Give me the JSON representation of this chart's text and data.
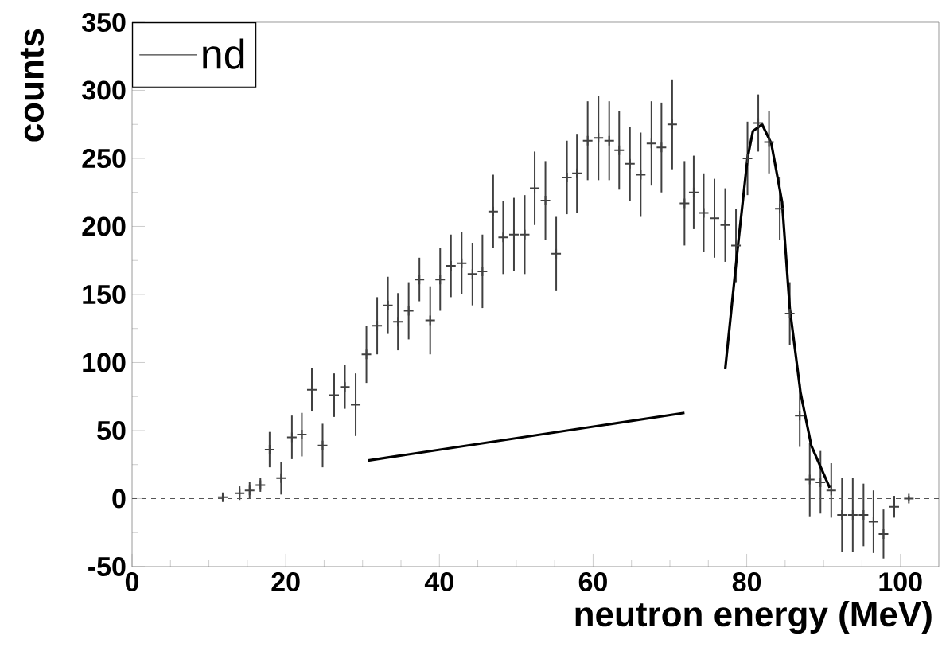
{
  "chart_data": {
    "type": "scatter",
    "xlabel": "neutron energy (MeV)",
    "ylabel": "counts",
    "xlim": [
      0,
      105
    ],
    "ylim": [
      -50,
      350
    ],
    "xticks": [
      0,
      20,
      40,
      60,
      80,
      100
    ],
    "yticks": [
      -50,
      0,
      50,
      100,
      150,
      200,
      250,
      300,
      350
    ],
    "grid": false,
    "legend": "top left",
    "ref_lines": [
      {
        "axis": "y",
        "value": 0,
        "line_style": "dashed",
        "color": "#555555"
      }
    ],
    "series": [
      {
        "name": "nd",
        "color": "#404040",
        "marker": "cross",
        "x": [
          11.8,
          14.0,
          15.3,
          16.7,
          17.9,
          19.4,
          20.8,
          22.1,
          23.4,
          24.8,
          26.3,
          27.7,
          29.1,
          30.5,
          31.9,
          33.3,
          34.6,
          36.0,
          37.4,
          38.8,
          40.1,
          41.5,
          42.9,
          44.3,
          45.6,
          47.0,
          48.3,
          49.7,
          51.1,
          52.4,
          53.8,
          55.2,
          56.6,
          57.9,
          59.3,
          60.7,
          62.1,
          63.4,
          64.8,
          66.2,
          67.6,
          68.9,
          70.3,
          71.9,
          73.1,
          74.4,
          75.8,
          77.2,
          78.6,
          80.1,
          81.5,
          82.9,
          84.3,
          85.6,
          86.9,
          88.2,
          89.6,
          91.0,
          92.4,
          93.8,
          95.2,
          96.5,
          97.8,
          99.2,
          101.1
        ],
        "values": [
          1,
          4,
          6,
          10,
          36,
          15,
          45,
          47,
          80,
          39,
          76,
          82,
          69,
          106,
          127,
          142,
          130,
          138,
          161,
          131,
          161,
          171,
          173,
          165,
          167,
          211,
          192,
          194,
          194,
          228,
          219,
          180,
          236,
          239,
          263,
          265,
          263,
          256,
          246,
          238,
          261,
          258,
          275,
          217,
          225,
          210,
          206,
          201,
          186,
          250,
          276,
          262,
          213,
          136,
          61,
          14,
          12,
          6,
          -12,
          -12,
          -12,
          -17,
          -26,
          -6,
          0
        ],
        "errors": [
          2,
          5,
          6,
          5,
          13,
          12,
          16,
          16,
          16,
          16,
          16,
          16,
          23,
          21,
          21,
          21,
          21,
          21,
          16,
          25,
          23,
          23,
          23,
          23,
          27,
          27,
          27,
          27,
          29,
          27,
          29,
          27,
          27,
          29,
          29,
          31,
          29,
          29,
          27,
          31,
          31,
          33,
          33,
          31,
          27,
          29,
          29,
          27,
          27,
          27,
          21,
          23,
          23,
          23,
          23,
          27,
          23,
          20,
          27,
          27,
          23,
          23,
          18,
          8,
          2
        ]
      },
      {
        "type": "line",
        "color": "#000000",
        "x": [
          30.7,
          71.9
        ],
        "values": [
          28,
          63
        ]
      },
      {
        "type": "line",
        "color": "#000000",
        "x": [
          77.2,
          78.8,
          80.1,
          80.8,
          82.0,
          83.2,
          84.6,
          85.6,
          87.0,
          88.4,
          90.8
        ],
        "values": [
          95,
          183,
          250,
          270,
          275,
          261,
          218,
          140,
          78,
          39,
          8
        ]
      }
    ]
  }
}
